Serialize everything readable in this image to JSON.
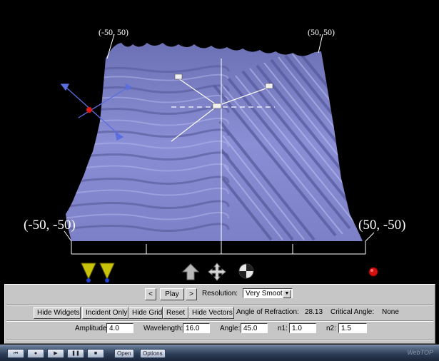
{
  "corners": {
    "top_left": "(-50, 50)",
    "top_right": "(50, 50)",
    "bottom_left": "(-50, -50)",
    "bottom_right": "(50, -50)"
  },
  "colors": {
    "surface": "#8e92d6",
    "background": "#000000",
    "panel": "#c6c6c6",
    "widget_yellow": "#c8c20a",
    "record_red": "#d41010"
  },
  "viewer_icons": [
    "incident-beam-cones-icon",
    "rotate-view-icon",
    "pan-view-icon",
    "zoom-view-icon",
    "record-icon"
  ],
  "controls": {
    "prev_label": "<",
    "play_label": "Play",
    "next_label": ">",
    "resolution_label": "Resolution:",
    "resolution_value": "Very Smooth",
    "buttons": [
      "Hide Widgets",
      "Incident Only",
      "Hide Grid",
      "Reset",
      "Hide Vectors"
    ],
    "angle_refraction_label": "Angle of Refraction:",
    "angle_refraction_value": "28.13",
    "critical_angle_label": "Critical Angle:",
    "critical_angle_value": "None",
    "amplitude_label": "Amplitude:",
    "amplitude_value": "4.0",
    "wavelength_label": "Wavelength:",
    "wavelength_value": "16.0",
    "angle_label": "Angle:",
    "angle_value": "45.0",
    "n1_label": "n1:",
    "n1_value": "1.0",
    "n2_label": "n2:",
    "n2_value": "1.5"
  },
  "taskbar": {
    "icons": [
      "rewind-icon",
      "record-dot-icon",
      "play-icon",
      "pause-icon",
      "stop-icon"
    ],
    "open_label": "Open",
    "options_label": "Options",
    "watermark": "WebTOP"
  }
}
